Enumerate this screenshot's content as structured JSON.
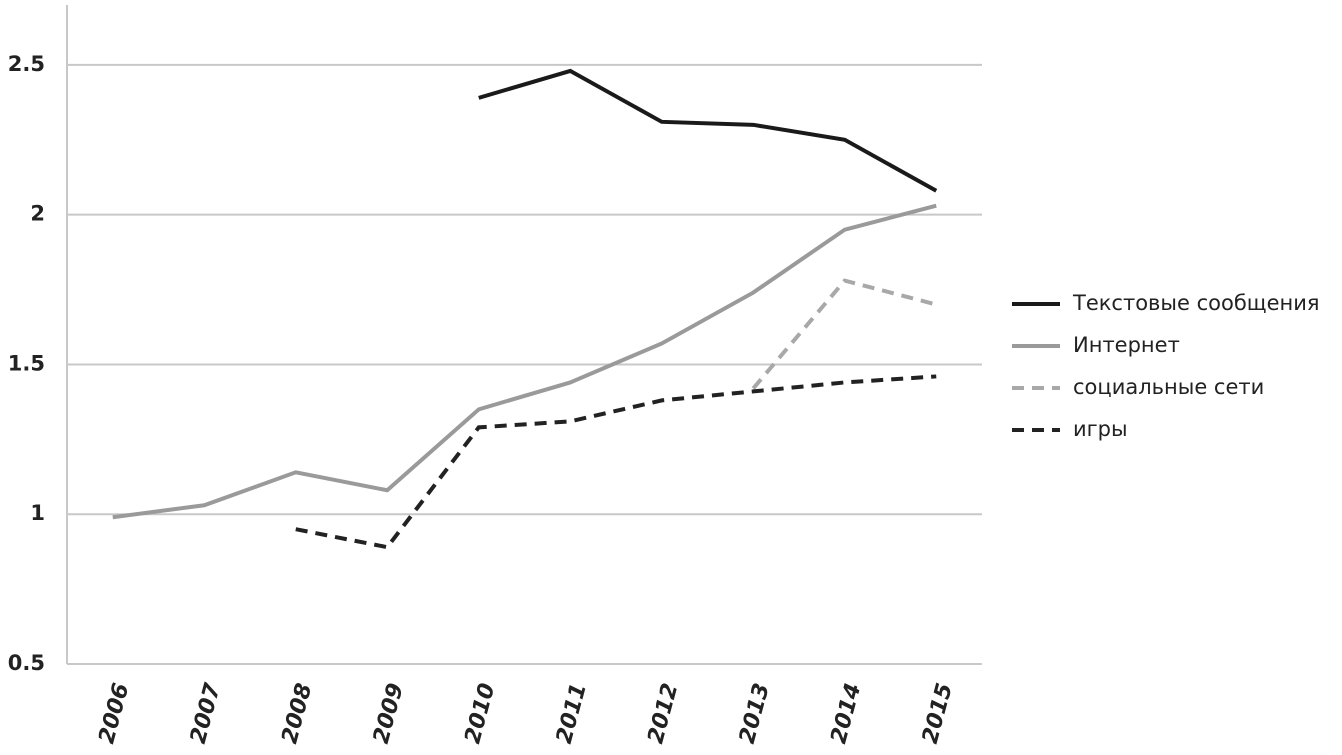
{
  "chart_data": {
    "type": "line",
    "categories": [
      "2006",
      "2007",
      "2008",
      "2009",
      "2010",
      "2011",
      "2012",
      "2013",
      "2014",
      "2015"
    ],
    "series": [
      {
        "name": "Текстовые сообщения",
        "color": "#1a1a1a",
        "dashed": false,
        "values": [
          null,
          null,
          null,
          null,
          2.39,
          2.48,
          2.31,
          2.3,
          2.25,
          2.08
        ]
      },
      {
        "name": "Интернет",
        "color": "#9a9a9a",
        "dashed": false,
        "values": [
          0.99,
          1.03,
          1.14,
          1.08,
          1.35,
          1.44,
          1.57,
          1.74,
          1.95,
          2.03
        ]
      },
      {
        "name": "социальные сети",
        "color": "#a8a8a8",
        "dashed": true,
        "values": [
          null,
          null,
          null,
          null,
          null,
          null,
          null,
          1.42,
          1.78,
          1.7
        ]
      },
      {
        "name": "игры",
        "color": "#222222",
        "dashed": true,
        "values": [
          null,
          null,
          0.95,
          0.89,
          1.29,
          1.31,
          1.38,
          1.41,
          1.44,
          1.46
        ]
      }
    ],
    "ylim": [
      0.5,
      2.7
    ],
    "yticks": [
      0.5,
      1,
      1.5,
      2,
      2.5
    ],
    "grid": true,
    "legend": "right"
  }
}
